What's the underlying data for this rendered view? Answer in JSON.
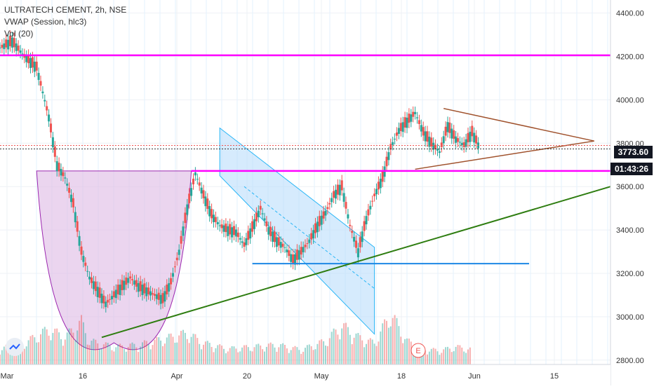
{
  "legend": {
    "line1": "ULTRATECH CEMENT, 2h, NSE",
    "line2": "VWAP (Session, hlc3)",
    "line3": "Vol (20)"
  },
  "price_labels": {
    "last_price": "3773.60",
    "countdown": "01:43:26"
  },
  "earnings_marker": "E",
  "colors": {
    "up_candle": "#26a69a",
    "down_candle": "#ef5350",
    "magenta_level": "#ff00ff",
    "green_trend": "#2e7d10",
    "blue_support": "#1e88e5",
    "triangle": "#a0522d",
    "cup_fill": "#e1bee7",
    "channel_fill": "#bbdefb"
  },
  "chart_data": {
    "type": "line",
    "title": "ULTRATECH CEMENT, 2h, NSE",
    "x_ticks": [
      "Mar",
      "16",
      "Apr",
      "20",
      "May",
      "18",
      "Jun",
      "15"
    ],
    "y_ticks": [
      "4400.00",
      "4200.00",
      "4000.00",
      "3800.00",
      "3600.00",
      "3400.00",
      "3200.00",
      "3000.00",
      "2800.00"
    ],
    "ylim": [
      2780,
      4460
    ],
    "grid": true,
    "series": [
      {
        "points": [
          [
            0,
            4240
          ],
          [
            3,
            4270
          ],
          [
            6,
            4200
          ],
          [
            9,
            4150
          ],
          [
            12,
            3920
          ],
          [
            14,
            3700
          ],
          [
            16,
            3640
          ],
          [
            18,
            3520
          ],
          [
            20,
            3300
          ],
          [
            22,
            3180
          ],
          [
            24,
            3120
          ],
          [
            26,
            3060
          ],
          [
            28,
            3100
          ],
          [
            30,
            3140
          ],
          [
            32,
            3180
          ],
          [
            34,
            3140
          ],
          [
            36,
            3120
          ],
          [
            38,
            3100
          ],
          [
            40,
            3080
          ],
          [
            42,
            3160
          ],
          [
            44,
            3300
          ],
          [
            46,
            3500
          ],
          [
            48,
            3660
          ],
          [
            50,
            3560
          ],
          [
            52,
            3470
          ],
          [
            54,
            3420
          ],
          [
            56,
            3400
          ],
          [
            58,
            3390
          ],
          [
            60,
            3330
          ],
          [
            62,
            3410
          ],
          [
            64,
            3500
          ],
          [
            66,
            3400
          ],
          [
            68,
            3350
          ],
          [
            70,
            3320
          ],
          [
            72,
            3260
          ],
          [
            74,
            3300
          ],
          [
            76,
            3350
          ],
          [
            78,
            3420
          ],
          [
            80,
            3480
          ],
          [
            82,
            3560
          ],
          [
            84,
            3600
          ],
          [
            86,
            3420
          ],
          [
            88,
            3300
          ],
          [
            90,
            3450
          ],
          [
            92,
            3560
          ],
          [
            94,
            3640
          ],
          [
            96,
            3780
          ],
          [
            98,
            3860
          ],
          [
            100,
            3900
          ],
          [
            102,
            3940
          ],
          [
            104,
            3850
          ],
          [
            106,
            3800
          ],
          [
            108,
            3760
          ],
          [
            110,
            3880
          ],
          [
            112,
            3820
          ],
          [
            114,
            3790
          ],
          [
            116,
            3850
          ],
          [
            118,
            3774
          ]
        ]
      }
    ],
    "volume_points": [
      [
        0,
        40
      ],
      [
        6,
        55
      ],
      [
        12,
        90
      ],
      [
        16,
        70
      ],
      [
        20,
        110
      ],
      [
        22,
        60
      ],
      [
        28,
        45
      ],
      [
        34,
        50
      ],
      [
        40,
        65
      ],
      [
        46,
        80
      ],
      [
        50,
        55
      ],
      [
        56,
        40
      ],
      [
        62,
        45
      ],
      [
        68,
        50
      ],
      [
        74,
        38
      ],
      [
        80,
        60
      ],
      [
        84,
        100
      ],
      [
        88,
        70
      ],
      [
        92,
        55
      ],
      [
        96,
        130
      ],
      [
        100,
        60
      ],
      [
        104,
        40
      ],
      [
        108,
        35
      ],
      [
        112,
        45
      ],
      [
        116,
        38
      ]
    ],
    "volume_range": [
      0,
      140
    ],
    "annotations": {
      "horizontal_levels": [
        {
          "price": 4205,
          "color": "magenta",
          "from_x": 0,
          "to_x": 150
        },
        {
          "price": 3672,
          "color": "magenta",
          "from_x": 47,
          "to_x": 150
        },
        {
          "price": 3245,
          "color": "blue",
          "from_x": 62,
          "to_x": 130
        }
      ],
      "trendline": {
        "from": [
          25,
          2905
        ],
        "to": [
          150,
          3600
        ]
      },
      "triangle": {
        "upper": [
          [
            109,
            3960
          ],
          [
            146,
            3810
          ]
        ],
        "lower": [
          [
            102,
            3680
          ],
          [
            146,
            3810
          ]
        ]
      },
      "cup": {
        "left_x": 9,
        "right_x": 47,
        "rim_price": 3672,
        "bottom_price": 2880
      },
      "channel": {
        "upper": [
          [
            54,
            3870
          ],
          [
            92,
            3320
          ]
        ],
        "lower": [
          [
            54,
            3650
          ],
          [
            92,
            2920
          ]
        ],
        "mid": [
          [
            60,
            3600
          ],
          [
            92,
            3130
          ]
        ]
      }
    },
    "x_domain": [
      0,
      150
    ]
  }
}
